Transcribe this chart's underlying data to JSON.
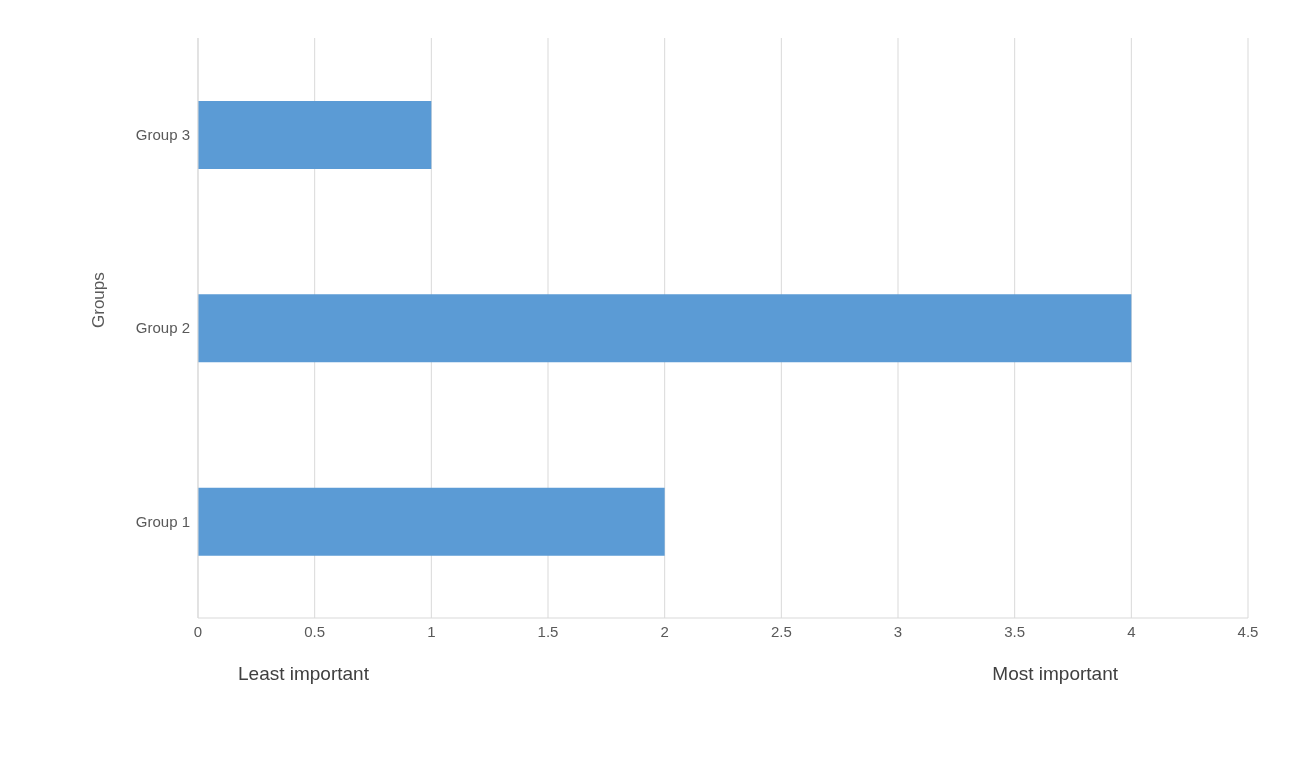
{
  "chart_data": {
    "type": "bar",
    "orientation": "horizontal",
    "ylabel": "Groups",
    "categories": [
      "Group 3",
      "Group 2",
      "Group 1"
    ],
    "values": [
      1,
      4,
      2
    ],
    "color": "#5b9bd5",
    "xlim": [
      0,
      4.5
    ],
    "xticks": [
      0,
      0.5,
      1,
      1.5,
      2,
      2.5,
      3,
      3.5,
      4,
      4.5
    ],
    "grid": "x",
    "annotations": [
      "Least important",
      "Most important"
    ]
  }
}
